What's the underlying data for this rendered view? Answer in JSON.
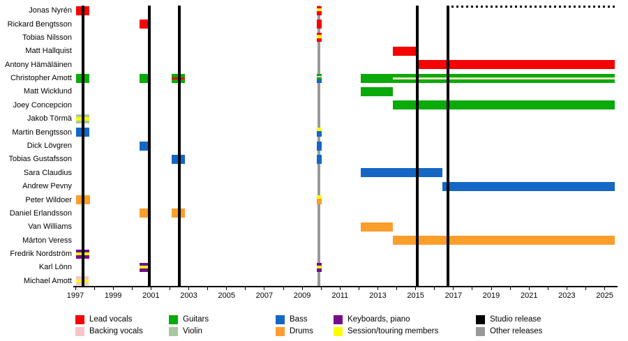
{
  "chart_data": {
    "type": "timeline",
    "description": "Band members timeline chart (gantt-style) with instrument color coding and release lines",
    "x_axis": {
      "min": 1997,
      "max": 2025.55,
      "tick_labels": [
        "1997",
        "1999",
        "2001",
        "2003",
        "2005",
        "2007",
        "2009",
        "2011",
        "2013",
        "2015",
        "2017",
        "2019",
        "2021",
        "2023",
        "2025"
      ],
      "minor_tick_every_years": 1,
      "grid": "off",
      "legend_position": "bottom"
    },
    "members": [
      "Jonas Nyrén",
      "Rickard Bengtsson",
      "Tobias Nilsson",
      "Matt Hallquist",
      "Antony Hämäläinen",
      "Christopher Amott",
      "Matt Wicklund",
      "Joey Concepcion",
      "Jakob Törmä",
      "Martin Bengtsson",
      "Dick Lövgren",
      "Tobias Gustafsson",
      "Sara Claudius",
      "Andrew Pevny",
      "Peter Wildoer",
      "Daniel Erlandsson",
      "Van Williams",
      "Márton Veress",
      "Fredrik Nordström",
      "Karl Lönn",
      "Michael Amott"
    ],
    "colors": {
      "red": "#f40404",
      "green": "#0aaa0a",
      "blue": "#1467c4",
      "orange": "#fb9e2c",
      "purple": "#740d8c",
      "yellow": "#fdfd00",
      "pink": "#f6c5ca",
      "violin": "#a9c7a0",
      "cream": "#ece3c0",
      "black": "#000000",
      "gray": "#999999"
    },
    "releases": {
      "studio": [
        1997.4,
        2000.92,
        2002.5,
        2015.07,
        2016.72
      ],
      "other": [
        2009.9
      ]
    },
    "top_dashed_line": {
      "start": 2016.9,
      "end": 2025.55
    },
    "bars": [
      {
        "member": "Jonas Nyrén",
        "row": 0,
        "start": 1997.05,
        "end": 1997.75,
        "segments": [
          [
            "red",
            1
          ]
        ]
      },
      {
        "member": "Jonas Nyrén",
        "row": 0,
        "start": 2009.78,
        "end": 2010.02,
        "segments": [
          [
            "red",
            0.25
          ],
          [
            "yellow",
            0.3
          ],
          [
            "red",
            0.45
          ]
        ]
      },
      {
        "member": "Rickard Bengtsson",
        "row": 1,
        "start": 2000.4,
        "end": 2001.0,
        "segments": [
          [
            "red",
            1
          ]
        ]
      },
      {
        "member": "Rickard Bengtsson",
        "row": 1,
        "start": 2009.78,
        "end": 2010.02,
        "segments": [
          [
            "red",
            1
          ]
        ]
      },
      {
        "member": "Tobias Nilsson",
        "row": 2,
        "start": 2009.78,
        "end": 2010.02,
        "segments": [
          [
            "red",
            0.2
          ],
          [
            "yellow",
            0.4
          ],
          [
            "red",
            0.4
          ]
        ]
      },
      {
        "member": "Matt Hallquist",
        "row": 3,
        "start": 2013.78,
        "end": 2015.12,
        "segments": [
          [
            "red",
            1
          ]
        ]
      },
      {
        "member": "Antony Hämäläinen",
        "row": 4,
        "start": 2015.12,
        "end": 2025.55,
        "segments": [
          [
            "red",
            1
          ]
        ]
      },
      {
        "member": "Christopher Amott",
        "row": 5,
        "start": 1997.05,
        "end": 1997.75,
        "segments": [
          [
            "green",
            1
          ]
        ]
      },
      {
        "member": "Christopher Amott",
        "row": 5,
        "start": 2000.4,
        "end": 2001.0,
        "segments": [
          [
            "green",
            1
          ]
        ]
      },
      {
        "member": "Christopher Amott",
        "row": 5,
        "start": 2002.1,
        "end": 2002.78,
        "segments": [
          [
            "green",
            0.38
          ],
          [
            "red",
            0.27
          ],
          [
            "green",
            0.35
          ]
        ]
      },
      {
        "member": "Christopher Amott",
        "row": 5,
        "start": 2009.78,
        "end": 2010.02,
        "segments": [
          [
            "green",
            0.28
          ],
          [
            "pink",
            0.16
          ],
          [
            "green",
            0.2
          ],
          [
            "blue",
            0.36
          ]
        ]
      },
      {
        "member": "Christopher Amott",
        "row": 5,
        "start": 2012.1,
        "end": 2013.78,
        "segments": [
          [
            "green",
            1
          ]
        ]
      },
      {
        "member": "Christopher Amott",
        "row": 5,
        "start": 2013.78,
        "end": 2025.55,
        "segments": [
          [
            "green",
            0.38
          ],
          [
            "cream",
            0.24
          ],
          [
            "green",
            0.38
          ]
        ]
      },
      {
        "member": "Matt Wicklund",
        "row": 6,
        "start": 2012.1,
        "end": 2013.78,
        "segments": [
          [
            "green",
            1
          ]
        ]
      },
      {
        "member": "Joey Concepcion",
        "row": 7,
        "start": 2013.78,
        "end": 2025.55,
        "segments": [
          [
            "green",
            1
          ]
        ]
      },
      {
        "member": "Jakob Törmä",
        "row": 8,
        "start": 1997.05,
        "end": 1997.75,
        "segments": [
          [
            "violin",
            0.3
          ],
          [
            "yellow",
            0.4
          ],
          [
            "violin",
            0.3
          ]
        ]
      },
      {
        "member": "Martin Bengtsson",
        "row": 9,
        "start": 1997.05,
        "end": 1997.75,
        "segments": [
          [
            "blue",
            1
          ]
        ]
      },
      {
        "member": "Martin Bengtsson",
        "row": 9,
        "start": 2009.78,
        "end": 2010.02,
        "segments": [
          [
            "yellow",
            0.35
          ],
          [
            "blue",
            0.65
          ]
        ]
      },
      {
        "member": "Dick Lövgren",
        "row": 10,
        "start": 2000.4,
        "end": 2001.0,
        "segments": [
          [
            "blue",
            1
          ]
        ]
      },
      {
        "member": "Dick Lövgren",
        "row": 10,
        "start": 2009.78,
        "end": 2010.02,
        "segments": [
          [
            "blue",
            1
          ]
        ]
      },
      {
        "member": "Tobias Gustafsson",
        "row": 11,
        "start": 2002.1,
        "end": 2002.78,
        "segments": [
          [
            "blue",
            1
          ]
        ]
      },
      {
        "member": "Tobias Gustafsson",
        "row": 11,
        "start": 2009.78,
        "end": 2010.02,
        "segments": [
          [
            "blue",
            1
          ]
        ]
      },
      {
        "member": "Sara Claudius",
        "row": 12,
        "start": 2012.1,
        "end": 2016.42,
        "segments": [
          [
            "blue",
            1
          ]
        ]
      },
      {
        "member": "Andrew Pevny",
        "row": 13,
        "start": 2016.42,
        "end": 2025.55,
        "segments": [
          [
            "blue",
            1
          ]
        ]
      },
      {
        "member": "Peter Wildoer",
        "row": 14,
        "start": 1997.05,
        "end": 1997.78,
        "segments": [
          [
            "orange",
            1
          ]
        ]
      },
      {
        "member": "Peter Wildoer",
        "row": 14,
        "start": 2009.78,
        "end": 2010.02,
        "segments": [
          [
            "yellow",
            0.35
          ],
          [
            "orange",
            0.65
          ]
        ]
      },
      {
        "member": "Daniel Erlandsson",
        "row": 15,
        "start": 2000.4,
        "end": 2001.0,
        "segments": [
          [
            "orange",
            1
          ]
        ]
      },
      {
        "member": "Daniel Erlandsson",
        "row": 15,
        "start": 2002.1,
        "end": 2002.78,
        "segments": [
          [
            "orange",
            1
          ]
        ]
      },
      {
        "member": "Van Williams",
        "row": 16,
        "start": 2012.1,
        "end": 2013.78,
        "segments": [
          [
            "orange",
            1
          ]
        ]
      },
      {
        "member": "Márton Veress",
        "row": 17,
        "start": 2013.78,
        "end": 2025.55,
        "segments": [
          [
            "orange",
            1
          ]
        ]
      },
      {
        "member": "Fredrik Nordström",
        "row": 18,
        "start": 1997.05,
        "end": 1997.75,
        "segments": [
          [
            "purple",
            0.32
          ],
          [
            "yellow",
            0.3
          ],
          [
            "purple",
            0.38
          ]
        ]
      },
      {
        "member": "Karl Lönn",
        "row": 19,
        "start": 2000.4,
        "end": 2001.0,
        "segments": [
          [
            "purple",
            0.32
          ],
          [
            "yellow",
            0.3
          ],
          [
            "purple",
            0.38
          ]
        ]
      },
      {
        "member": "Karl Lönn",
        "row": 19,
        "start": 2009.78,
        "end": 2010.02,
        "segments": [
          [
            "purple",
            0.32
          ],
          [
            "yellow",
            0.3
          ],
          [
            "purple",
            0.38
          ]
        ]
      },
      {
        "member": "Michael Amott",
        "row": 20,
        "start": 1997.05,
        "end": 1997.7,
        "segments": [
          [
            "pink",
            0.35
          ],
          [
            "yellow",
            0.3
          ],
          [
            "pink",
            0.35
          ]
        ]
      }
    ],
    "legend": {
      "items": [
        {
          "label": "Lead vocals",
          "color": "red",
          "col": 0,
          "row": 0
        },
        {
          "label": "Backing vocals",
          "color": "pink",
          "col": 0,
          "row": 1
        },
        {
          "label": "Guitars",
          "color": "green",
          "col": 1,
          "row": 0
        },
        {
          "label": "Violin",
          "color": "violin",
          "col": 1,
          "row": 1
        },
        {
          "label": "Bass",
          "color": "blue",
          "col": 2,
          "row": 0
        },
        {
          "label": "Drums",
          "color": "orange",
          "col": 2,
          "row": 1
        },
        {
          "label": "Keyboards, piano",
          "color": "purple",
          "col": 3,
          "row": 0
        },
        {
          "label": "Session/touring members",
          "color": "yellow",
          "col": 3,
          "row": 1
        },
        {
          "label": "Studio release",
          "color": "black",
          "col": 4,
          "row": 0
        },
        {
          "label": "Other releases",
          "color": "gray",
          "col": 4,
          "row": 1
        }
      ]
    }
  }
}
